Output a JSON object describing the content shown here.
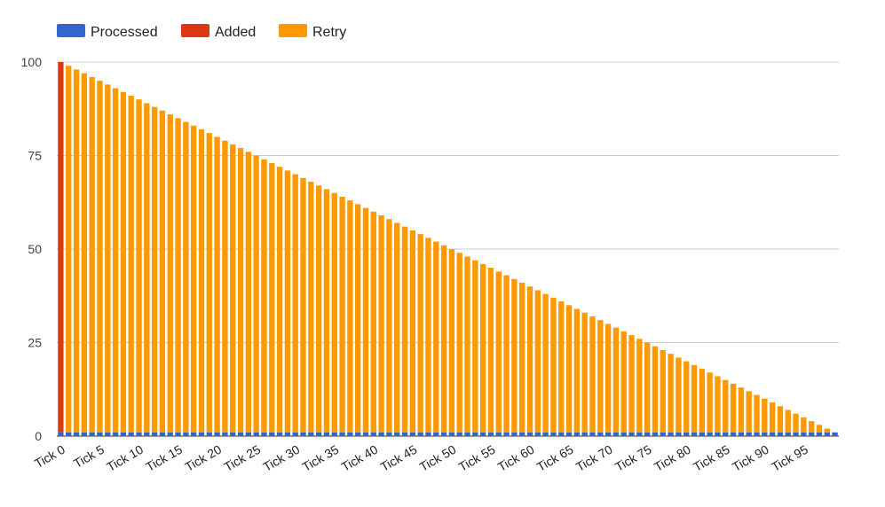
{
  "chart_data": {
    "type": "bar",
    "stacked": true,
    "title": "",
    "xlabel": "",
    "ylabel": "",
    "ylim": [
      0,
      100
    ],
    "yticks": [
      0,
      25,
      50,
      75,
      100
    ],
    "grid": true,
    "legend_position": "top-left",
    "x_tick_labels": [
      "Tick 0",
      "Tick 5",
      "Tick 10",
      "Tick 15",
      "Tick 20",
      "Tick 25",
      "Tick 30",
      "Tick 35",
      "Tick 40",
      "Tick 45",
      "Tick 50",
      "Tick 55",
      "Tick 60",
      "Tick 65",
      "Tick 70",
      "Tick 75",
      "Tick 80",
      "Tick 85",
      "Tick 90",
      "Tick 95"
    ],
    "categories": [
      "Tick 0",
      "Tick 1",
      "Tick 2",
      "Tick 3",
      "Tick 4",
      "Tick 5",
      "Tick 6",
      "Tick 7",
      "Tick 8",
      "Tick 9",
      "Tick 10",
      "Tick 11",
      "Tick 12",
      "Tick 13",
      "Tick 14",
      "Tick 15",
      "Tick 16",
      "Tick 17",
      "Tick 18",
      "Tick 19",
      "Tick 20",
      "Tick 21",
      "Tick 22",
      "Tick 23",
      "Tick 24",
      "Tick 25",
      "Tick 26",
      "Tick 27",
      "Tick 28",
      "Tick 29",
      "Tick 30",
      "Tick 31",
      "Tick 32",
      "Tick 33",
      "Tick 34",
      "Tick 35",
      "Tick 36",
      "Tick 37",
      "Tick 38",
      "Tick 39",
      "Tick 40",
      "Tick 41",
      "Tick 42",
      "Tick 43",
      "Tick 44",
      "Tick 45",
      "Tick 46",
      "Tick 47",
      "Tick 48",
      "Tick 49",
      "Tick 50",
      "Tick 51",
      "Tick 52",
      "Tick 53",
      "Tick 54",
      "Tick 55",
      "Tick 56",
      "Tick 57",
      "Tick 58",
      "Tick 59",
      "Tick 60",
      "Tick 61",
      "Tick 62",
      "Tick 63",
      "Tick 64",
      "Tick 65",
      "Tick 66",
      "Tick 67",
      "Tick 68",
      "Tick 69",
      "Tick 70",
      "Tick 71",
      "Tick 72",
      "Tick 73",
      "Tick 74",
      "Tick 75",
      "Tick 76",
      "Tick 77",
      "Tick 78",
      "Tick 79",
      "Tick 80",
      "Tick 81",
      "Tick 82",
      "Tick 83",
      "Tick 84",
      "Tick 85",
      "Tick 86",
      "Tick 87",
      "Tick 88",
      "Tick 89",
      "Tick 90",
      "Tick 91",
      "Tick 92",
      "Tick 93",
      "Tick 94",
      "Tick 95",
      "Tick 96",
      "Tick 97",
      "Tick 98",
      "Tick 99"
    ],
    "series": [
      {
        "name": "Processed",
        "color": "#3366cc",
        "values": [
          1,
          1,
          1,
          1,
          1,
          1,
          1,
          1,
          1,
          1,
          1,
          1,
          1,
          1,
          1,
          1,
          1,
          1,
          1,
          1,
          1,
          1,
          1,
          1,
          1,
          1,
          1,
          1,
          1,
          1,
          1,
          1,
          1,
          1,
          1,
          1,
          1,
          1,
          1,
          1,
          1,
          1,
          1,
          1,
          1,
          1,
          1,
          1,
          1,
          1,
          1,
          1,
          1,
          1,
          1,
          1,
          1,
          1,
          1,
          1,
          1,
          1,
          1,
          1,
          1,
          1,
          1,
          1,
          1,
          1,
          1,
          1,
          1,
          1,
          1,
          1,
          1,
          1,
          1,
          1,
          1,
          1,
          1,
          1,
          1,
          1,
          1,
          1,
          1,
          1,
          1,
          1,
          1,
          1,
          1,
          1,
          1,
          1,
          1,
          1
        ]
      },
      {
        "name": "Added",
        "color": "#dc3912",
        "values": [
          99,
          0,
          0,
          0,
          0,
          0,
          0,
          0,
          0,
          0,
          0,
          0,
          0,
          0,
          0,
          0,
          0,
          0,
          0,
          0,
          0,
          0,
          0,
          0,
          0,
          0,
          0,
          0,
          0,
          0,
          0,
          0,
          0,
          0,
          0,
          0,
          0,
          0,
          0,
          0,
          0,
          0,
          0,
          0,
          0,
          0,
          0,
          0,
          0,
          0,
          0,
          0,
          0,
          0,
          0,
          0,
          0,
          0,
          0,
          0,
          0,
          0,
          0,
          0,
          0,
          0,
          0,
          0,
          0,
          0,
          0,
          0,
          0,
          0,
          0,
          0,
          0,
          0,
          0,
          0,
          0,
          0,
          0,
          0,
          0,
          0,
          0,
          0,
          0,
          0,
          0,
          0,
          0,
          0,
          0,
          0,
          0,
          0,
          0,
          0
        ]
      },
      {
        "name": "Retry",
        "color": "#ff9900",
        "values": [
          0,
          98,
          97,
          96,
          95,
          94,
          93,
          92,
          91,
          90,
          89,
          88,
          87,
          86,
          85,
          84,
          83,
          82,
          81,
          80,
          79,
          78,
          77,
          76,
          75,
          74,
          73,
          72,
          71,
          70,
          69,
          68,
          67,
          66,
          65,
          64,
          63,
          62,
          61,
          60,
          59,
          58,
          57,
          56,
          55,
          54,
          53,
          52,
          51,
          50,
          49,
          48,
          47,
          46,
          45,
          44,
          43,
          42,
          41,
          40,
          39,
          38,
          37,
          36,
          35,
          34,
          33,
          32,
          31,
          30,
          29,
          28,
          27,
          26,
          25,
          24,
          23,
          22,
          21,
          20,
          19,
          18,
          17,
          16,
          15,
          14,
          13,
          12,
          11,
          10,
          9,
          8,
          7,
          6,
          5,
          4,
          3,
          2,
          1,
          0
        ]
      }
    ]
  }
}
